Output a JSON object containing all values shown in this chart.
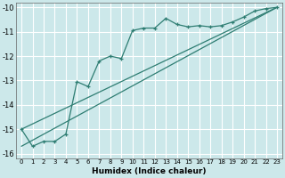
{
  "xlabel": "Humidex (Indice chaleur)",
  "background_color": "#cce8ea",
  "grid_color": "#ffffff",
  "line_color": "#2e7d72",
  "xlim": [
    -0.5,
    23.5
  ],
  "ylim": [
    -16.2,
    -9.8
  ],
  "yticks": [
    -16,
    -15,
    -14,
    -13,
    -12,
    -11,
    -10
  ],
  "xticks": [
    0,
    1,
    2,
    3,
    4,
    5,
    6,
    7,
    8,
    9,
    10,
    11,
    12,
    13,
    14,
    15,
    16,
    17,
    18,
    19,
    20,
    21,
    22,
    23
  ],
  "curve1_x": [
    0,
    1,
    2,
    3,
    4,
    5,
    6,
    7,
    8,
    9,
    10,
    11,
    12,
    13,
    14,
    15,
    16,
    17,
    18,
    19,
    20,
    21,
    22,
    23
  ],
  "curve1_y": [
    -15.0,
    -15.7,
    -15.5,
    -15.5,
    -15.2,
    -13.05,
    -13.25,
    -12.2,
    -12.0,
    -12.1,
    -10.95,
    -10.85,
    -10.85,
    -10.45,
    -10.7,
    -10.8,
    -10.75,
    -10.8,
    -10.75,
    -10.6,
    -10.4,
    -10.15,
    -10.05,
    -10.0
  ],
  "line1_x": [
    0,
    23
  ],
  "line1_y": [
    -15.0,
    -10.0
  ],
  "line2_x": [
    0,
    23
  ],
  "line2_y": [
    -15.7,
    -10.0
  ]
}
